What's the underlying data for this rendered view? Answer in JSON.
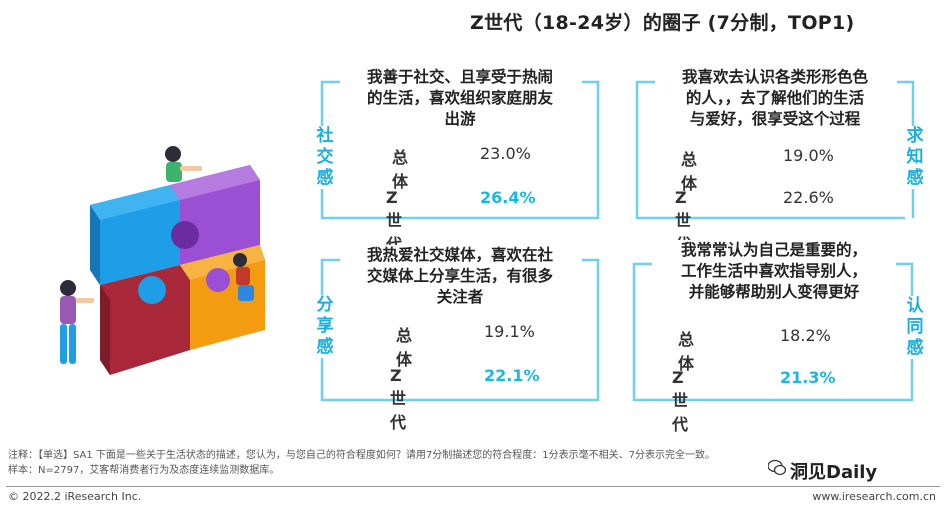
{
  "chart_data": {
    "type": "table",
    "title": "Z世代（18-24岁）的圈子 (7分制，TOP1)",
    "row_labels": [
      "总体",
      "Z世代"
    ],
    "cards": [
      {
        "category": "社交感",
        "statement": [
          "我善于社交、且享受于热闹",
          "的生活，喜欢组织家庭朋友",
          "出游"
        ],
        "values": [
          "23.0%",
          "26.4%"
        ]
      },
      {
        "category": "求知感",
        "statement": [
          "我喜欢去认识各类形形色色",
          "的人，，去了解他们的生活",
          "与爱好，很享受这个过程"
        ],
        "values": [
          "19.0%",
          "22.6%"
        ]
      },
      {
        "category": "分享感",
        "statement": [
          "我热爱社交媒体，喜欢在社",
          "交媒体上分享生活，有很多",
          "关注者"
        ],
        "values": [
          "19.1%",
          "22.1%"
        ]
      },
      {
        "category": "认同感",
        "statement": [
          "我常常认为自己是重要的，",
          "工作生活中喜欢指导别人，",
          "并能够帮助别人变得更好"
        ],
        "values": [
          "18.2%",
          "21.3%"
        ]
      }
    ]
  },
  "notes": {
    "line1": "注释：【单选】SA1 下面是一些关于生活状态的描述，您认为，与您自己的符合程度如何？请用7分制描述您的符合程度：1分表示毫不相关、7分表示完全一致。",
    "line2": "样本：N=2797，艾客帮消费者行为及态度连续监测数据库。"
  },
  "footer": {
    "copyright": "© 2022.2 iResearch Inc.",
    "url": "www.iresearch.com.cn",
    "brand": "洞见Daily"
  },
  "colors": {
    "accent": "#19b7e6",
    "frame": "#6fd0ee",
    "puzzle_blue": "#1e9ee6",
    "puzzle_purple": "#8e44c8",
    "puzzle_red": "#a8283a",
    "puzzle_orange": "#f39c12"
  }
}
